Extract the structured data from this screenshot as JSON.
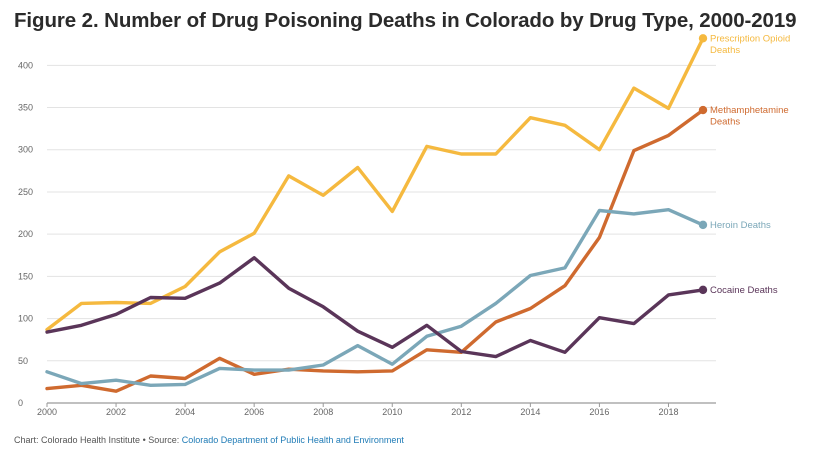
{
  "chart_data": {
    "type": "line",
    "title": "Figure 2. Number of Drug Poisoning Deaths in Colorado by Drug Type, 2000-2019",
    "x": [
      2000,
      2001,
      2002,
      2003,
      2004,
      2005,
      2006,
      2007,
      2008,
      2009,
      2010,
      2011,
      2012,
      2013,
      2014,
      2015,
      2016,
      2017,
      2018,
      2019
    ],
    "xticks": [
      2000,
      2002,
      2004,
      2006,
      2008,
      2010,
      2012,
      2014,
      2016,
      2018
    ],
    "yticks": [
      0,
      50,
      100,
      150,
      200,
      250,
      300,
      350,
      400
    ],
    "xlim": [
      2000,
      2019.3
    ],
    "ylim": [
      0,
      430
    ],
    "grid": true,
    "series": [
      {
        "name": "Prescription Opioid Deaths",
        "label_lines": [
          "Prescription Opioid",
          "Deaths"
        ],
        "color": "#f5b93f",
        "values": [
          87,
          118,
          119,
          118,
          138,
          179,
          201,
          269,
          246,
          279,
          227,
          304,
          295,
          295,
          338,
          329,
          300,
          373,
          349,
          432
        ]
      },
      {
        "name": "Methamphetamine Deaths",
        "label_lines": [
          "Methamphetamine",
          "Deaths"
        ],
        "color": "#cf6a2f",
        "values": [
          17,
          21,
          14,
          32,
          29,
          53,
          34,
          40,
          38,
          37,
          38,
          63,
          60,
          96,
          112,
          139,
          196,
          299,
          317,
          347
        ]
      },
      {
        "name": "Heroin Deaths",
        "label_lines": [
          "Heroin Deaths"
        ],
        "color": "#7ba7b8",
        "values": [
          37,
          23,
          27,
          21,
          22,
          41,
          39,
          39,
          45,
          68,
          46,
          79,
          91,
          118,
          151,
          160,
          228,
          224,
          229,
          211
        ]
      },
      {
        "name": "Cocaine Deaths",
        "label_lines": [
          "Cocaine Deaths"
        ],
        "color": "#5a3559",
        "values": [
          84,
          92,
          105,
          125,
          124,
          142,
          172,
          136,
          114,
          85,
          66,
          92,
          61,
          55,
          74,
          60,
          101,
          94,
          128,
          134
        ]
      }
    ]
  },
  "source": {
    "prefix": "Chart: Colorado Health Institute • Source: ",
    "link_text": "Colorado Department of Public Health and Environment"
  }
}
